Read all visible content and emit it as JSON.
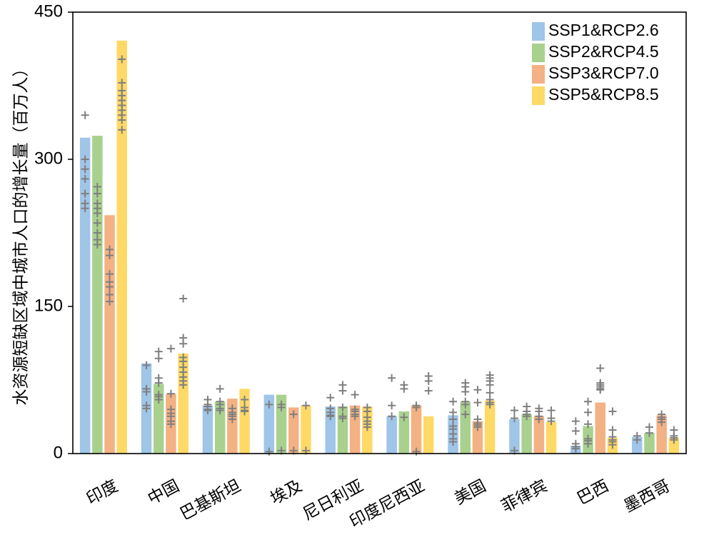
{
  "chart_data": {
    "type": "bar",
    "ylabel": "水资源短缺区域中城市人口的增长量（百万人）",
    "xlabel": "",
    "ylim": [
      0,
      450
    ],
    "yticks": [
      0,
      150,
      300,
      450
    ],
    "grid": false,
    "legend_position": "top-right",
    "categories": [
      "印度",
      "中国",
      "巴基斯坦",
      "埃及",
      "尼日利亚",
      "印度尼西亚",
      "美国",
      "菲律宾",
      "巴西",
      "墨西哥"
    ],
    "series": [
      {
        "name": "SSP1&RCP2.6",
        "color": "#9fc5e8",
        "values": [
          322,
          92,
          49,
          60,
          48,
          38,
          39,
          35,
          8,
          17
        ],
        "markers": [
          [
            345,
            300,
            290,
            280,
            265,
            255,
            250
          ],
          [
            90,
            66,
            63,
            49,
            46
          ],
          [
            55,
            50,
            48,
            45,
            44
          ],
          [
            50,
            2
          ],
          [
            57,
            46,
            42,
            39,
            38
          ],
          [
            77,
            49,
            38
          ],
          [
            53,
            42,
            35,
            28,
            25,
            20,
            15,
            12
          ],
          [
            44,
            36,
            3
          ],
          [
            33,
            23,
            10,
            7,
            5
          ],
          [
            18,
            14
          ]
        ]
      },
      {
        "name": "SSP2&RCP4.5",
        "color": "#a9d18e",
        "values": [
          324,
          71,
          53,
          60,
          48,
          43,
          53,
          40,
          28,
          21
        ],
        "markers": [
          [
            272,
            265,
            255,
            250,
            245,
            235,
            225,
            218,
            213
          ],
          [
            104,
            97,
            77,
            72,
            60,
            58,
            55
          ],
          [
            66,
            53,
            50,
            46,
            44
          ],
          [
            50,
            47,
            3
          ],
          [
            70,
            64,
            47,
            38,
            36
          ],
          [
            70,
            66,
            37
          ],
          [
            72,
            68,
            63,
            53,
            50,
            40
          ],
          [
            48,
            43,
            40,
            38
          ],
          [
            53,
            42,
            30,
            15,
            13,
            10
          ],
          [
            27,
            21
          ]
        ]
      },
      {
        "name": "SSP3&RCP7.0",
        "color": "#f4b183",
        "values": [
          243,
          61,
          56,
          47,
          49,
          49,
          33,
          38,
          52,
          39
        ],
        "markers": [
          [
            208,
            202,
            183,
            175,
            170,
            162,
            155
          ],
          [
            107,
            61,
            45,
            41,
            38,
            33,
            30
          ],
          [
            46,
            42,
            40,
            38,
            35
          ],
          [
            40,
            3
          ],
          [
            60,
            45,
            43,
            40,
            38
          ],
          [
            49,
            47,
            2
          ],
          [
            65,
            52,
            35,
            31,
            29,
            27
          ],
          [
            46,
            43,
            38,
            35
          ],
          [
            87,
            72,
            70,
            68,
            66,
            65
          ],
          [
            40,
            37,
            35,
            32
          ]
        ]
      },
      {
        "name": "SSP5&RCP8.5",
        "color": "#ffd966",
        "values": [
          421,
          102,
          66,
          49,
          48,
          38,
          54,
          32,
          16,
          16
        ],
        "markers": [
          [
            402,
            378,
            370,
            365,
            360,
            355,
            350,
            345,
            340,
            330
          ],
          [
            158,
            118,
            112,
            98,
            94,
            88,
            83,
            78,
            74,
            70
          ],
          [
            55,
            47,
            44,
            43
          ],
          [
            49,
            3
          ],
          [
            47,
            43,
            37,
            33,
            30,
            27
          ],
          [
            79,
            74,
            64
          ],
          [
            80,
            77,
            74,
            70,
            62,
            55,
            52,
            50
          ],
          [
            44,
            36,
            33
          ],
          [
            43,
            24,
            17,
            14,
            12,
            9
          ],
          [
            24,
            18,
            16,
            14
          ]
        ]
      }
    ]
  }
}
